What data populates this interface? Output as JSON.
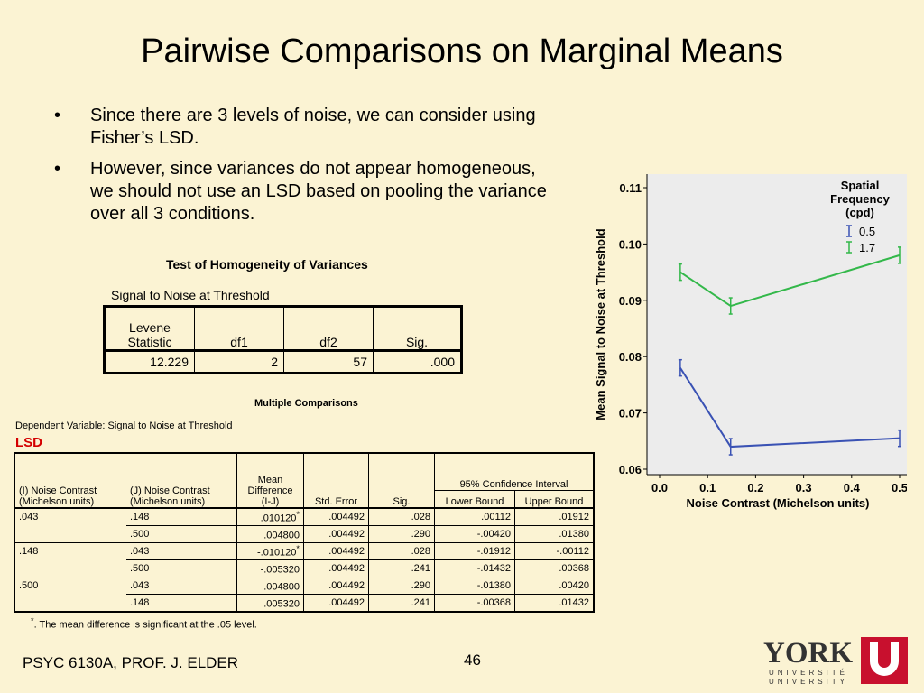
{
  "slide": {
    "title": "Pairwise Comparisons on Marginal Means",
    "bullets": [
      "Since there are 3 levels of noise, we can consider using Fisher’s LSD.",
      "However, since variances do not appear homogeneous, we should not use an LSD based on pooling the variance over all 3 conditions."
    ],
    "footer_left": "PSYC 6130A, PROF. J. ELDER",
    "page_number": "46",
    "logo": {
      "name": "York-logo",
      "text_main": "YORK",
      "text_sub1": "UNIVERSITÉ",
      "text_sub2": "UNIVERSITY",
      "color": "#c8102e"
    }
  },
  "levene": {
    "title": "Test of Homogeneity of Variances",
    "subtitle": "Signal to Noise at Threshold",
    "headers": [
      "Levene Statistic",
      "df1",
      "df2",
      "Sig."
    ],
    "header_line1": "Levene",
    "header_line2": "Statistic",
    "row": [
      "12.229",
      "2",
      "57",
      ".000"
    ]
  },
  "multiple": {
    "title": "Multiple Comparisons",
    "dependent": "Dependent Variable: Signal to Noise at Threshold",
    "method": "LSD",
    "h_i1": "(I) Noise Contrast",
    "h_i2": "(Michelson units)",
    "h_j1": "(J) Noise Contrast",
    "h_j2": "(Michelson units)",
    "h_md1": "Mean",
    "h_md2": "Difference",
    "h_md3": "(I-J)",
    "h_se": "Std. Error",
    "h_sig": "Sig.",
    "h_ci": "95% Confidence Interval",
    "h_lb": "Lower Bound",
    "h_ub": "Upper Bound",
    "rows": [
      {
        "i": ".043",
        "j": ".148",
        "md": ".010120",
        "star": "*",
        "se": ".004492",
        "sig": ".028",
        "lb": ".00112",
        "ub": ".01912"
      },
      {
        "i": "",
        "j": ".500",
        "md": ".004800",
        "star": "",
        "se": ".004492",
        "sig": ".290",
        "lb": "-.00420",
        "ub": ".01380"
      },
      {
        "i": ".148",
        "j": ".043",
        "md": "-.010120",
        "star": "*",
        "se": ".004492",
        "sig": ".028",
        "lb": "-.01912",
        "ub": "-.00112"
      },
      {
        "i": "",
        "j": ".500",
        "md": "-.005320",
        "star": "",
        "se": ".004492",
        "sig": ".241",
        "lb": "-.01432",
        "ub": ".00368"
      },
      {
        "i": ".500",
        "j": ".043",
        "md": "-.004800",
        "star": "",
        "se": ".004492",
        "sig": ".290",
        "lb": "-.01380",
        "ub": ".00420"
      },
      {
        "i": "",
        "j": ".148",
        "md": ".005320",
        "star": "",
        "se": ".004492",
        "sig": ".241",
        "lb": "-.00368",
        "ub": ".01432"
      }
    ],
    "note_star": "*",
    "note": ". The mean difference is significant at the .05 level."
  },
  "chart_data": {
    "type": "line",
    "title": "",
    "xlabel": "Noise Contrast (Michelson units)",
    "ylabel": "Mean Signal to Noise at Threshold",
    "xlim": [
      0.0,
      0.5
    ],
    "ylim": [
      0.06,
      0.11
    ],
    "xticks": [
      "0.0",
      "0.1",
      "0.2",
      "0.3",
      "0.4",
      "0.5"
    ],
    "yticks": [
      "0.06",
      "0.07",
      "0.08",
      "0.09",
      "0.10",
      "0.11"
    ],
    "x": [
      0.043,
      0.148,
      0.5
    ],
    "legend_title": [
      "Spatial",
      "Frequency",
      "(cpd)"
    ],
    "legend_position": "top-right",
    "series": [
      {
        "name": "0.5",
        "color": "#3a52b4",
        "values": [
          0.078,
          0.064,
          0.0655
        ]
      },
      {
        "name": "1.7",
        "color": "#33b84a",
        "values": [
          0.095,
          0.089,
          0.098
        ]
      }
    ]
  }
}
